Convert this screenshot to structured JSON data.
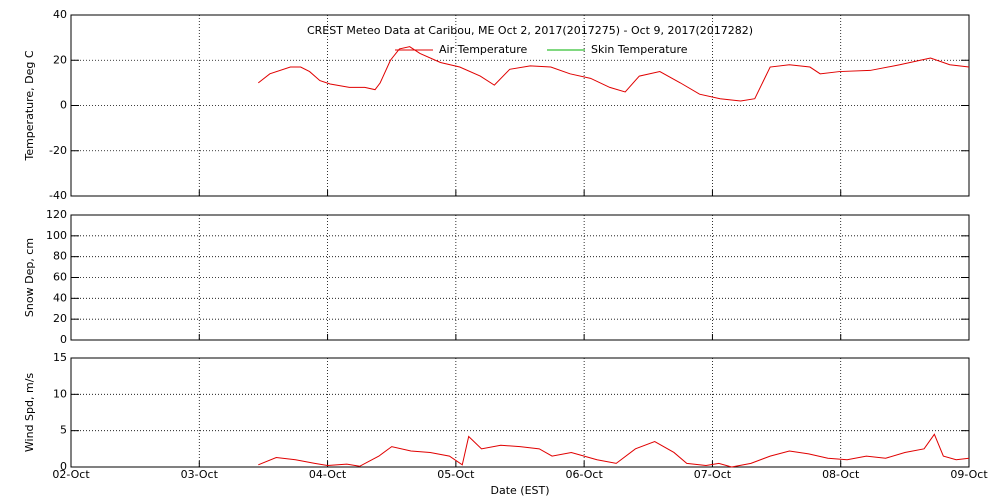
{
  "chart_data": [
    {
      "type": "line",
      "title": "CREST Meteo Data at Caribou, ME   Oct  2, 2017(2017275) - Oct  9, 2017(2017282)",
      "ylabel": "Temperature, Deg C",
      "ylim": [
        -40,
        40
      ],
      "yticks": [
        -40,
        -20,
        0,
        20,
        40
      ],
      "grid": true,
      "x": [
        1.46,
        1.55,
        1.71,
        1.79,
        1.86,
        1.94,
        2.02,
        2.17,
        2.29,
        2.37,
        2.41,
        2.49,
        2.56,
        2.64,
        2.72,
        2.88,
        3.03,
        3.19,
        3.3,
        3.42,
        3.58,
        3.74,
        3.89,
        4.05,
        4.2,
        4.32,
        4.43,
        4.59,
        4.75,
        4.9,
        5.06,
        5.22,
        5.33,
        5.45,
        5.6,
        5.76,
        5.84,
        5.99,
        6.23,
        6.46,
        6.7,
        6.85,
        7.0
      ],
      "series": [
        {
          "name": "Air Temperature",
          "color": "#e00000",
          "values": [
            10,
            14,
            17,
            17,
            15,
            11,
            9.5,
            8,
            8,
            7,
            10,
            20,
            25,
            26,
            23,
            19,
            17,
            13,
            9,
            16,
            17.5,
            17,
            14,
            12,
            8,
            6,
            13,
            15,
            10,
            5,
            3,
            2,
            3,
            17,
            18,
            17,
            14,
            15,
            15.5,
            18,
            21,
            18,
            17
          ]
        },
        {
          "name": "Skin Temperature",
          "color": "#00b000",
          "values": [
            null,
            null,
            null,
            null,
            null,
            null,
            null,
            null,
            null,
            null,
            null,
            null,
            null,
            null,
            null,
            null,
            null,
            null,
            null,
            null,
            null,
            null,
            null,
            null,
            null,
            null,
            null,
            null,
            null,
            null,
            null,
            null,
            null,
            null,
            null,
            null,
            null,
            null,
            null,
            null,
            null,
            null,
            null
          ]
        }
      ]
    },
    {
      "type": "line",
      "ylabel": "Snow Dep, cm",
      "ylim": [
        0,
        120
      ],
      "yticks": [
        0,
        20,
        40,
        60,
        80,
        100,
        120
      ],
      "grid": true,
      "x": [],
      "series": []
    },
    {
      "type": "line",
      "ylabel": "Wind Spd, m/s",
      "xlabel": "Date (EST)",
      "xlim": [
        0,
        7
      ],
      "xticks": [
        {
          "value": 0,
          "label": "02-Oct"
        },
        {
          "value": 1,
          "label": "03-Oct"
        },
        {
          "value": 2,
          "label": "04-Oct"
        },
        {
          "value": 3,
          "label": "05-Oct"
        },
        {
          "value": 4,
          "label": "06-Oct"
        },
        {
          "value": 5,
          "label": "07-Oct"
        },
        {
          "value": 6,
          "label": "08-Oct"
        },
        {
          "value": 7,
          "label": "09-Oct"
        }
      ],
      "ylim": [
        0,
        15
      ],
      "yticks": [
        0,
        5,
        10,
        15
      ],
      "grid": true,
      "x": [
        1.46,
        1.6,
        1.75,
        1.9,
        2.0,
        2.15,
        2.25,
        2.4,
        2.5,
        2.65,
        2.8,
        2.95,
        3.05,
        3.1,
        3.2,
        3.35,
        3.5,
        3.65,
        3.75,
        3.9,
        4.0,
        4.1,
        4.25,
        4.4,
        4.55,
        4.7,
        4.8,
        4.95,
        5.05,
        5.15,
        5.3,
        5.45,
        5.6,
        5.75,
        5.9,
        6.05,
        6.2,
        6.35,
        6.5,
        6.65,
        6.73,
        6.8,
        6.9,
        7.0
      ],
      "series": [
        {
          "name": null,
          "color": "#e00000",
          "values": [
            0.3,
            1.3,
            1.0,
            0.5,
            0.2,
            0.4,
            0.1,
            1.5,
            2.8,
            2.2,
            2.0,
            1.5,
            0.3,
            4.2,
            2.5,
            3.0,
            2.8,
            2.5,
            1.5,
            2.0,
            1.5,
            1.0,
            0.5,
            2.5,
            3.5,
            2.0,
            0.5,
            0.2,
            0.5,
            0,
            0.5,
            1.5,
            2.2,
            1.8,
            1.2,
            1.0,
            1.5,
            1.2,
            2.0,
            2.5,
            4.5,
            1.5,
            1.0,
            1.2
          ]
        }
      ]
    }
  ]
}
